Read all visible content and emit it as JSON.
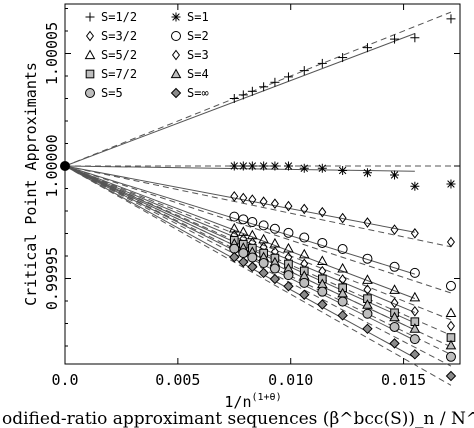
{
  "chart_data": {
    "type": "scatter",
    "xlabel": "1/n",
    "xlabel_sup": "(1+θ)",
    "ylabel": "Critical Point Approximants",
    "xlim": [
      0.0,
      0.0175
    ],
    "ylim": [
      0.999912,
      1.000072
    ],
    "x_ticks": [
      {
        "v": 0.0,
        "label": "0.0"
      },
      {
        "v": 0.005,
        "label": "0.005"
      },
      {
        "v": 0.01,
        "label": "0.010"
      },
      {
        "v": 0.015,
        "label": "0.015"
      }
    ],
    "y_ticks": [
      {
        "v": 1.00005,
        "label": "1.00005"
      },
      {
        "v": 1.0,
        "label": "1.00000"
      },
      {
        "v": 0.99995,
        "label": "0.99995"
      }
    ],
    "x_points": [
      0.0075,
      0.0079,
      0.0083,
      0.0088,
      0.0093,
      0.0099,
      0.0106,
      0.0114,
      0.0123,
      0.0134,
      0.0146,
      0.0155,
      0.0171
    ],
    "series": [
      {
        "name": "S=1/2",
        "marker": "plus",
        "fill": "none",
        "slope": 0.004,
        "dev": [
          0.0,
          0.0,
          0.0,
          0.0,
          0.0,
          0.0,
          0.0,
          0.0,
          -1e-06,
          -1e-06,
          -2e-06,
          -5e-06,
          -3e-06
        ],
        "fit_slope": 0.0038,
        "ext_slope": 0.004
      },
      {
        "name": "S=1",
        "marker": "asterisk",
        "fill": "none",
        "slope": 0.0,
        "dev": [
          0.0,
          0.0,
          0.0,
          0.0,
          0.0,
          0.0,
          -1e-06,
          -1e-06,
          -2e-06,
          -3e-06,
          -4e-06,
          -9e-06,
          -8e-06
        ],
        "fit_slope": -0.00015,
        "ext_slope": 0.0
      },
      {
        "name": "S=3/2",
        "marker": "diamond-thin",
        "fill": "none",
        "slope": -0.0018,
        "dev": [
          0.0,
          0.0,
          0.0,
          0.0,
          0.0,
          0.0,
          0.0,
          0.0,
          -1e-06,
          -1e-06,
          -2e-06,
          -2e-06,
          -3e-06
        ],
        "fit_slope": -0.0019,
        "ext_slope": -0.0021
      },
      {
        "name": "S=2",
        "marker": "circle",
        "fill": "none",
        "slope": -0.003,
        "dev": [
          0.0,
          0.0,
          0.0,
          0.0,
          0.0,
          0.0,
          0.0,
          0.0,
          0.0,
          -1e-06,
          -1e-06,
          -1e-06,
          -2e-06
        ],
        "fit_slope": -0.0031,
        "ext_slope": -0.0033
      },
      {
        "name": "S=5/2",
        "marker": "triangle",
        "fill": "none",
        "slope": -0.0037,
        "dev": [
          0.0,
          0.0,
          0.0,
          0.0,
          0.0,
          0.0,
          0.0,
          0.0,
          0.0,
          -1e-06,
          -1e-06,
          -1e-06,
          -2e-06
        ],
        "fit_slope": -0.0038,
        "ext_slope": -0.004
      },
      {
        "name": "S=3",
        "marker": "diamond-thin",
        "fill": "none",
        "slope": -0.0041,
        "dev": [
          0.0,
          0.0,
          0.0,
          0.0,
          0.0,
          0.0,
          0.0,
          0.0,
          0.0,
          0.0,
          -1e-06,
          -1e-06,
          -1e-06
        ],
        "fit_slope": -0.0042,
        "ext_slope": -0.0044
      },
      {
        "name": "S=7/2",
        "marker": "square",
        "fill": "#bdbdbd",
        "slope": -0.0044,
        "dev": [
          0.0,
          0.0,
          0.0,
          0.0,
          0.0,
          0.0,
          0.0,
          0.0,
          0.0,
          0.0,
          -1e-06,
          -1e-06,
          -1e-06
        ],
        "fit_slope": -0.0045,
        "ext_slope": -0.0047
      },
      {
        "name": "S=4",
        "marker": "triangle",
        "fill": "#bdbdbd",
        "slope": -0.0046,
        "dev": [
          0.0,
          0.0,
          0.0,
          0.0,
          0.0,
          0.0,
          0.0,
          0.0,
          0.0,
          0.0,
          0.0,
          -1e-06,
          -1e-06
        ],
        "fit_slope": -0.0047,
        "ext_slope": -0.0049
      },
      {
        "name": "S=5",
        "marker": "circle",
        "fill": "#bdbdbd",
        "slope": -0.0049,
        "dev": [
          0.0,
          0.0,
          0.0,
          0.0,
          0.0,
          0.0,
          0.0,
          0.0,
          0.0,
          0.0,
          0.0,
          -1e-06,
          -1e-06
        ],
        "fit_slope": -0.005,
        "ext_slope": -0.0052
      },
      {
        "name": "S=∞",
        "marker": "diamond",
        "fill": "#8a8a8a",
        "slope": -0.0054,
        "dev": [
          0.0,
          0.0,
          0.0,
          0.0,
          0.0,
          0.0,
          0.0,
          0.0,
          0.0,
          0.0,
          0.0,
          0.0,
          -1e-06
        ],
        "fit_slope": -0.0055,
        "ext_slope": -0.0057
      }
    ],
    "legend": {
      "position": "top-left",
      "order": [
        "S=1/2",
        "S=1",
        "S=3/2",
        "S=2",
        "S=5/2",
        "S=3",
        "S=7/2",
        "S=4",
        "S=5",
        "S=∞"
      ]
    },
    "grid": false
  },
  "caption": "odified-ratio approximant sequences (β^bcc(S))_n / N^bcc(S) for the"
}
